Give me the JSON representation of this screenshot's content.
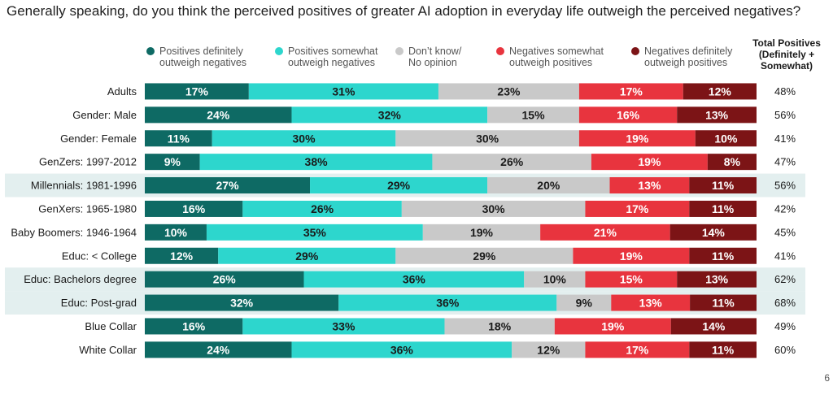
{
  "title": "Generally speaking, do you think the perceived positives of greater AI adoption in everyday life outweigh the perceived negatives?",
  "total_header": "Total Positives\n(Definitely +\nSomewhat)",
  "page_number": "6",
  "chart_data": {
    "type": "bar",
    "stacked": true,
    "orientation": "horizontal",
    "value_unit": "%",
    "categories": [
      "Adults",
      "Gender: Male",
      "Gender: Female",
      "GenZers: 1997-2012",
      "Millennials: 1981-1996",
      "GenXers: 1965-1980",
      "Baby Boomers: 1946-1964",
      "Educ: < College",
      "Educ: Bachelors degree",
      "Educ: Post-grad",
      "Blue Collar",
      "White Collar"
    ],
    "highlighted_rows": [
      4,
      8,
      9
    ],
    "series": [
      {
        "name": "Positives definitely\noutweigh negatives",
        "color": "#0e6a64",
        "label_color": "#ffffff",
        "values": [
          17,
          24,
          11,
          9,
          27,
          16,
          10,
          12,
          26,
          32,
          16,
          24
        ]
      },
      {
        "name": "Positives somewhat\noutweigh negatives",
        "color": "#2dd6cd",
        "label_color": "#1a1a1a",
        "values": [
          31,
          32,
          30,
          38,
          29,
          26,
          35,
          29,
          36,
          36,
          33,
          36
        ]
      },
      {
        "name": "Don’t know/\nNo opinion",
        "color": "#c9c9c9",
        "label_color": "#1a1a1a",
        "values": [
          23,
          15,
          30,
          26,
          20,
          30,
          19,
          29,
          10,
          9,
          18,
          12
        ]
      },
      {
        "name": "Negatives somewhat\noutweigh positives",
        "color": "#e8343e",
        "label_color": "#ffffff",
        "values": [
          17,
          16,
          19,
          19,
          13,
          17,
          21,
          19,
          15,
          13,
          19,
          17
        ]
      },
      {
        "name": "Negatives definitely\noutweigh positives",
        "color": "#7c1416",
        "label_color": "#ffffff",
        "values": [
          12,
          13,
          10,
          8,
          11,
          11,
          14,
          11,
          13,
          11,
          14,
          11
        ]
      }
    ],
    "total_positives": [
      48,
      56,
      41,
      47,
      56,
      42,
      45,
      41,
      62,
      68,
      49,
      60
    ],
    "highlight_color": "#e3efef"
  }
}
